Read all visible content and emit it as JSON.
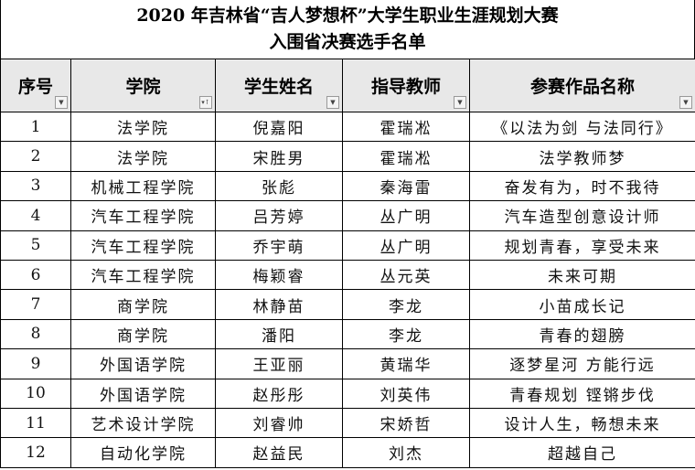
{
  "title": {
    "line1": "2020 年吉林省“吉人梦想杯”大学生职业生涯规划大赛",
    "line2": "入围省决赛选手名单"
  },
  "columns": [
    {
      "label": "序号",
      "filter_icon": "dropdown-arrow-icon"
    },
    {
      "label": "学院",
      "filter_icon": "sort-filter-icon"
    },
    {
      "label": "学生姓名",
      "filter_icon": "dropdown-arrow-icon"
    },
    {
      "label": "指导教师",
      "filter_icon": "dropdown-arrow-icon"
    },
    {
      "label": "参赛作品名称",
      "filter_icon": "dropdown-arrow-icon"
    }
  ],
  "rows": [
    [
      "1",
      "法学院",
      "倪嘉阳",
      "霍瑞凇",
      "《以法为剑 与法同行》"
    ],
    [
      "2",
      "法学院",
      "宋胜男",
      "霍瑞凇",
      "法学教师梦"
    ],
    [
      "3",
      "机械工程学院",
      "张彪",
      "秦海雷",
      "奋发有为，时不我待"
    ],
    [
      "4",
      "汽车工程学院",
      "吕芳婷",
      "丛广明",
      "汽车造型创意设计师"
    ],
    [
      "5",
      "汽车工程学院",
      "乔宇萌",
      "丛广明",
      "规划青春，享受未来"
    ],
    [
      "6",
      "汽车工程学院",
      "梅颖睿",
      "丛元英",
      "未来可期"
    ],
    [
      "7",
      "商学院",
      "林静苗",
      "李龙",
      "小苗成长记"
    ],
    [
      "8",
      "商学院",
      "潘阳",
      "李龙",
      "青春的翅膀"
    ],
    [
      "9",
      "外国语学院",
      "王亚丽",
      "黄瑞华",
      "逐梦星河 方能行远"
    ],
    [
      "10",
      "外国语学院",
      "赵彤彤",
      "刘英伟",
      "青春规划 铿锵步伐"
    ],
    [
      "11",
      "艺术设计学院",
      "刘睿帅",
      "宋娇哲",
      "设计人生，畅想未来"
    ],
    [
      "12",
      "自动化学院",
      "赵益民",
      "刘杰",
      "超越自己"
    ]
  ]
}
